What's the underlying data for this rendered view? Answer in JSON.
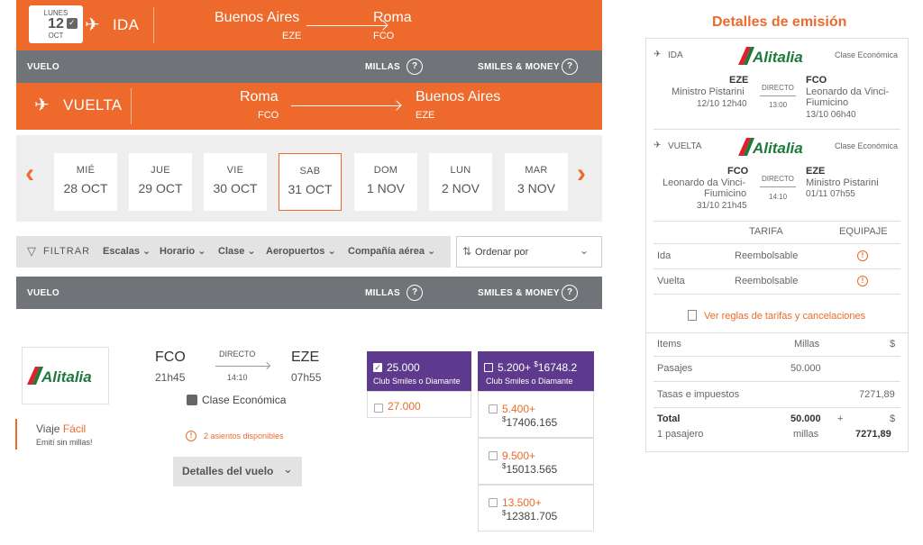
{
  "ida_bar": {
    "date": {
      "weekday": "LUNES",
      "day": "12",
      "month": "OCT"
    },
    "label": "IDA",
    "from_city": "Buenos Aires",
    "from_code": "EZE",
    "to_city": "Roma",
    "to_code": "FCO"
  },
  "header1": {
    "vuelo": "VUELO",
    "millas": "MILLAS",
    "smiles": "SMILES & MONEY",
    "help": "?"
  },
  "vuelta_bar": {
    "label": "VUELTA",
    "from_city": "Roma",
    "from_code": "FCO",
    "to_city": "Buenos Aires",
    "to_code": "EZE"
  },
  "dates": [
    {
      "name": "MIÉ",
      "date": "28 OCT"
    },
    {
      "name": "JUE",
      "date": "29 OCT"
    },
    {
      "name": "VIE",
      "date": "30 OCT"
    },
    {
      "name": "SAB",
      "date": "31 OCT"
    },
    {
      "name": "DOM",
      "date": "1 NOV"
    },
    {
      "name": "LUN",
      "date": "2 NOV"
    },
    {
      "name": "MAR",
      "date": "3 NOV"
    }
  ],
  "nav": {
    "prev": "‹",
    "next": "›"
  },
  "filters": {
    "label": "FILTRAR",
    "items": [
      "Escalas",
      "Horario",
      "Clase",
      "Aeropuertos",
      "Compañía aérea"
    ],
    "sort_label": "Ordenar por"
  },
  "header2": {
    "vuelo": "VUELO",
    "millas": "MILLAS",
    "smiles": "SMILES & MONEY",
    "help": "?"
  },
  "flight": {
    "airline": "Alitalia",
    "from_code": "FCO",
    "from_time": "21h45",
    "type": "DIRECTO",
    "duration": "14:10",
    "to_code": "EZE",
    "to_time": "07h55",
    "class": "Clase Económica",
    "seats": "2 asientos disponibles",
    "details_button": "Detalles del vuelo",
    "viaje": "Viaje",
    "facil": "Fácil",
    "viaje_sub": "Emití sin millas!"
  },
  "prices": {
    "club1_miles": "25.000",
    "club1_label": "Club Smiles o Diamante",
    "alt1": "27.000",
    "club2_miles": "5.200+",
    "club2_money_symbol": "$",
    "club2_money": "16748.2",
    "club2_label": "Club Smiles o Diamante",
    "options": [
      {
        "miles": "5.400+",
        "symbol": "$",
        "money": "17406.165"
      },
      {
        "miles": "9.500+",
        "symbol": "$",
        "money": "15013.565"
      },
      {
        "miles": "13.500+",
        "symbol": "$",
        "money": "12381.705"
      }
    ]
  },
  "details": {
    "title": "Detalles de emisión",
    "ida": {
      "label": "IDA",
      "airline": "Alitalia",
      "class": "Clase Económica",
      "from_code": "EZE",
      "from_name": "Ministro Pistarini",
      "from_dt": "12/10 12h40",
      "type": "DIRECTO",
      "duration": "13:00",
      "to_code": "FCO",
      "to_name1": "Leonardo da Vinci-",
      "to_name2": "Fiumicino",
      "to_dt": "13/10 06h40"
    },
    "vuelta": {
      "label": "VUELTA",
      "airline": "Alitalia",
      "class": "Clase Económica",
      "from_code": "FCO",
      "from_name1": "Leonardo da Vinci-",
      "from_name2": "Fiumicino",
      "from_dt": "31/10 21h45",
      "type": "DIRECTO",
      "duration": "14:10",
      "to_code": "EZE",
      "to_name": "Ministro Pistarini",
      "to_dt": "01/11 07h55"
    },
    "tarifa_header": "TARIFA",
    "equipaje_header": "EQUIPAJE",
    "rows": [
      {
        "leg": "Ida",
        "tarifa": "Reembolsable"
      },
      {
        "leg": "Vuelta",
        "tarifa": "Reembolsable"
      }
    ],
    "rules_link": "Ver reglas de tarifas y cancelaciones",
    "table": {
      "items": "Items",
      "millas": "Millas",
      "currency": "$",
      "pasajes": "Pasajes",
      "pasajes_millas": "50.000",
      "tasas": "Tasas e impuestos",
      "tasas_money": "7271,89",
      "total": "Total",
      "total_millas": "50.000",
      "plus": "+",
      "total_currency": "$",
      "pasajero": "1 pasajero",
      "millas_word": "millas",
      "total_money": "7271,89"
    }
  }
}
